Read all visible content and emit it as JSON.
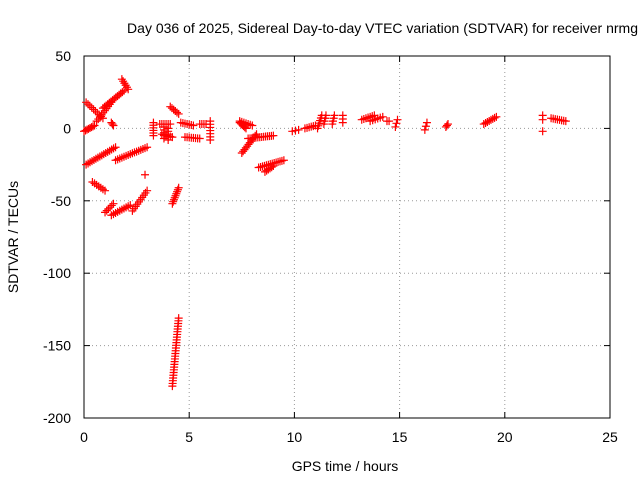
{
  "chart_data": {
    "type": "scatter",
    "title": "Day 036 of 2025, Sidereal Day-to-day VTEC variation (SDTVAR) for receiver nrmg",
    "xlabel": "GPS time / hours",
    "ylabel": "SDTVAR / TECUs",
    "xlim": [
      0,
      25
    ],
    "ylim": [
      -200,
      50
    ],
    "x_ticks": [
      0,
      5,
      10,
      15,
      20,
      25
    ],
    "y_ticks": [
      50,
      0,
      -50,
      -100,
      -150,
      -200
    ],
    "grid": true,
    "marker": "+",
    "series_color": "#ff0000",
    "segments": [
      {
        "x0": 0.0,
        "y0": -2,
        "x1": 0.5,
        "y1": 2,
        "n": 8
      },
      {
        "x0": 0.1,
        "y0": 18,
        "x1": 0.9,
        "y1": 7,
        "n": 10
      },
      {
        "x0": 0.6,
        "y0": 5,
        "x1": 1.3,
        "y1": 18,
        "n": 10
      },
      {
        "x0": 0.9,
        "y0": 14,
        "x1": 1.9,
        "y1": 26,
        "n": 14
      },
      {
        "x0": 1.8,
        "y0": 34,
        "x1": 2.1,
        "y1": 27,
        "n": 6
      },
      {
        "x0": 1.3,
        "y0": 4,
        "x1": 1.4,
        "y1": 2,
        "n": 3
      },
      {
        "x0": 0.1,
        "y0": -25,
        "x1": 1.5,
        "y1": -13,
        "n": 16
      },
      {
        "x0": 1.5,
        "y0": -22,
        "x1": 3.0,
        "y1": -13,
        "n": 16
      },
      {
        "x0": 0.4,
        "y0": -37,
        "x1": 1.0,
        "y1": -43,
        "n": 7
      },
      {
        "x0": 1.0,
        "y0": -58,
        "x1": 1.4,
        "y1": -52,
        "n": 6
      },
      {
        "x0": 1.3,
        "y0": -60,
        "x1": 2.2,
        "y1": -53,
        "n": 10
      },
      {
        "x0": 2.3,
        "y0": -57,
        "x1": 3.0,
        "y1": -43,
        "n": 10
      },
      {
        "x0": 2.9,
        "y0": -32,
        "x1": 3.0,
        "y1": -32,
        "n": 1
      },
      {
        "x0": 3.3,
        "y0": 4,
        "x1": 3.3,
        "y1": -5,
        "n": 6
      },
      {
        "x0": 3.6,
        "y0": 3,
        "x1": 4.1,
        "y1": 3,
        "n": 6
      },
      {
        "x0": 3.7,
        "y0": -4,
        "x1": 4.2,
        "y1": -6,
        "n": 6
      },
      {
        "x0": 3.8,
        "y0": 1,
        "x1": 3.8,
        "y1": -7,
        "n": 5
      },
      {
        "x0": 4.0,
        "y0": 0,
        "x1": 4.0,
        "y1": -8,
        "n": 5
      },
      {
        "x0": 4.1,
        "y0": 15,
        "x1": 4.5,
        "y1": 10,
        "n": 6
      },
      {
        "x0": 4.2,
        "y0": -52,
        "x1": 4.5,
        "y1": -41,
        "n": 9
      },
      {
        "x0": 4.2,
        "y0": -178,
        "x1": 4.5,
        "y1": -131,
        "n": 26
      },
      {
        "x0": 4.6,
        "y0": 4,
        "x1": 5.2,
        "y1": 2,
        "n": 7
      },
      {
        "x0": 4.8,
        "y0": -6,
        "x1": 5.5,
        "y1": -7,
        "n": 8
      },
      {
        "x0": 5.5,
        "y0": 3,
        "x1": 5.8,
        "y1": 3,
        "n": 4
      },
      {
        "x0": 6.0,
        "y0": 5,
        "x1": 6.0,
        "y1": -8,
        "n": 7
      },
      {
        "x0": 7.4,
        "y0": 4,
        "x1": 7.7,
        "y1": 0,
        "n": 6
      },
      {
        "x0": 7.4,
        "y0": 5,
        "x1": 8.0,
        "y1": 2,
        "n": 7
      },
      {
        "x0": 7.5,
        "y0": -17,
        "x1": 8.2,
        "y1": -4,
        "n": 12
      },
      {
        "x0": 7.8,
        "y0": -7,
        "x1": 9.0,
        "y1": -5,
        "n": 14
      },
      {
        "x0": 8.3,
        "y0": -27,
        "x1": 9.5,
        "y1": -22,
        "n": 14
      },
      {
        "x0": 8.6,
        "y0": -30,
        "x1": 9.0,
        "y1": -26,
        "n": 6
      },
      {
        "x0": 9.9,
        "y0": -2,
        "x1": 10.2,
        "y1": -1,
        "n": 3
      },
      {
        "x0": 10.5,
        "y0": 0,
        "x1": 11.0,
        "y1": 2,
        "n": 6
      },
      {
        "x0": 11.1,
        "y0": 0,
        "x1": 11.3,
        "y1": 9,
        "n": 6
      },
      {
        "x0": 11.4,
        "y0": 3,
        "x1": 11.5,
        "y1": 9,
        "n": 4
      },
      {
        "x0": 11.8,
        "y0": 3,
        "x1": 11.9,
        "y1": 9,
        "n": 4
      },
      {
        "x0": 12.3,
        "y0": 4,
        "x1": 12.3,
        "y1": 9,
        "n": 3
      },
      {
        "x0": 13.2,
        "y0": 6,
        "x1": 13.8,
        "y1": 9,
        "n": 7
      },
      {
        "x0": 13.6,
        "y0": 5,
        "x1": 14.2,
        "y1": 8,
        "n": 6
      },
      {
        "x0": 14.4,
        "y0": 5,
        "x1": 14.5,
        "y1": 5,
        "n": 2
      },
      {
        "x0": 14.8,
        "y0": 1,
        "x1": 14.9,
        "y1": 6,
        "n": 3
      },
      {
        "x0": 16.2,
        "y0": -1,
        "x1": 16.3,
        "y1": 4,
        "n": 3
      },
      {
        "x0": 17.2,
        "y0": 1,
        "x1": 17.3,
        "y1": 3,
        "n": 3
      },
      {
        "x0": 19.0,
        "y0": 3,
        "x1": 19.6,
        "y1": 8,
        "n": 8
      },
      {
        "x0": 21.8,
        "y0": 9,
        "x1": 21.8,
        "y1": 6,
        "n": 2
      },
      {
        "x0": 21.8,
        "y0": -2,
        "x1": 21.8,
        "y1": -2,
        "n": 1
      },
      {
        "x0": 22.2,
        "y0": 7,
        "x1": 22.9,
        "y1": 5,
        "n": 8
      }
    ]
  }
}
